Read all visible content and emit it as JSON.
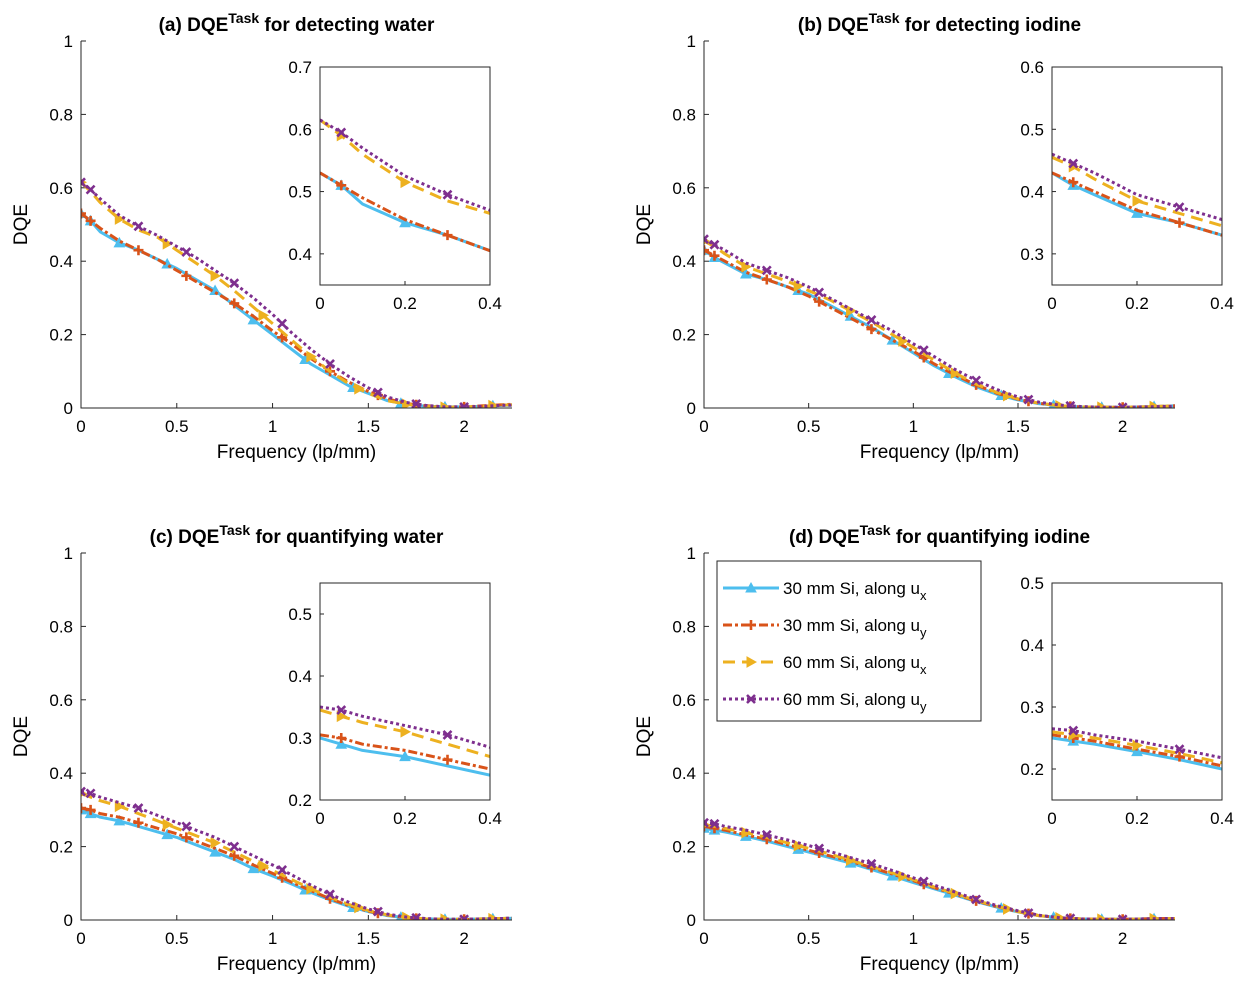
{
  "series_styles": [
    {
      "color": "#4DBEEE",
      "dash": "",
      "marker": "triangle-up"
    },
    {
      "color": "#D95319",
      "dash": "9,3,3,3",
      "marker": "plus"
    },
    {
      "color": "#EDB120",
      "dash": "12,7",
      "marker": "triangle-right"
    },
    {
      "color": "#7E2F8E",
      "dash": "3,3",
      "marker": "x"
    }
  ],
  "legend": {
    "entries": [
      {
        "text": "30 mm Si, along u",
        "sub": "x"
      },
      {
        "text": "30 mm Si, along u",
        "sub": "y"
      },
      {
        "text": "60 mm Si, along u",
        "sub": "x"
      },
      {
        "text": "60 mm Si, along u",
        "sub": "y"
      }
    ]
  },
  "chart_data": [
    {
      "type": "line",
      "title": {
        "pre": "(a) DQE",
        "sup": "Task",
        "post": " for detecting water"
      },
      "xlabel": "Frequency (lp/mm)",
      "ylabel": "DQE",
      "xlim": [
        0,
        2.25
      ],
      "ylim": [
        0,
        1
      ],
      "xticks": [
        {
          "v": 0,
          "label": "0"
        },
        {
          "v": 0.5,
          "label": "0.5"
        },
        {
          "v": 1,
          "label": "1"
        },
        {
          "v": 1.5,
          "label": "1.5"
        },
        {
          "v": 2,
          "label": "2"
        }
      ],
      "yticks": [
        {
          "v": 0,
          "label": "0"
        },
        {
          "v": 0.2,
          "label": "0.2"
        },
        {
          "v": 0.4,
          "label": "0.4"
        },
        {
          "v": 0.6,
          "label": "0.6"
        },
        {
          "v": 0.8,
          "label": "0.8"
        },
        {
          "v": 1,
          "label": "1"
        }
      ],
      "x": [
        0,
        0.05,
        0.1,
        0.2,
        0.3,
        0.4,
        0.5,
        0.6,
        0.7,
        0.8,
        0.9,
        1.0,
        1.1,
        1.2,
        1.3,
        1.4,
        1.5,
        1.6,
        1.7,
        1.8,
        1.9,
        2.0,
        2.1,
        2.2,
        2.25
      ],
      "series": [
        {
          "values": [
            0.53,
            0.51,
            0.48,
            0.45,
            0.43,
            0.405,
            0.38,
            0.35,
            0.32,
            0.28,
            0.24,
            0.2,
            0.16,
            0.12,
            0.09,
            0.06,
            0.04,
            0.02,
            0.01,
            0.005,
            0.003,
            0.003,
            0.005,
            0.007,
            0.008
          ]
        },
        {
          "values": [
            0.53,
            0.51,
            0.49,
            0.455,
            0.43,
            0.405,
            0.375,
            0.345,
            0.315,
            0.285,
            0.25,
            0.21,
            0.175,
            0.135,
            0.1,
            0.07,
            0.045,
            0.025,
            0.012,
            0.006,
            0.003,
            0.003,
            0.006,
            0.009,
            0.01
          ]
        },
        {
          "values": [
            0.615,
            0.59,
            0.56,
            0.515,
            0.485,
            0.465,
            0.43,
            0.395,
            0.36,
            0.32,
            0.275,
            0.23,
            0.185,
            0.14,
            0.1,
            0.065,
            0.04,
            0.02,
            0.01,
            0.004,
            0.002,
            0.003,
            0.005,
            0.008,
            0.009
          ]
        },
        {
          "values": [
            0.615,
            0.595,
            0.57,
            0.525,
            0.495,
            0.47,
            0.44,
            0.41,
            0.375,
            0.34,
            0.3,
            0.255,
            0.205,
            0.16,
            0.12,
            0.085,
            0.055,
            0.03,
            0.015,
            0.007,
            0.003,
            0.003,
            0.005,
            0.007,
            0.008
          ]
        }
      ],
      "inset": {
        "xlim": [
          0,
          0.4
        ],
        "ylim": [
          0.35,
          0.7
        ],
        "xticks": [
          {
            "v": 0,
            "label": "0"
          },
          {
            "v": 0.2,
            "label": "0.2"
          },
          {
            "v": 0.4,
            "label": "0.4"
          }
        ],
        "yticks": [
          {
            "v": 0.4,
            "label": "0.4"
          },
          {
            "v": 0.5,
            "label": "0.5"
          },
          {
            "v": 0.6,
            "label": "0.6"
          },
          {
            "v": 0.7,
            "label": "0.7"
          }
        ]
      }
    },
    {
      "type": "line",
      "title": {
        "pre": "(b) DQE",
        "sup": "Task",
        "post": " for detecting iodine"
      },
      "xlabel": "Frequency (lp/mm)",
      "ylabel": "DQE",
      "xlim": [
        0,
        2.25
      ],
      "ylim": [
        0,
        1
      ],
      "xticks": [
        {
          "v": 0,
          "label": "0"
        },
        {
          "v": 0.5,
          "label": "0.5"
        },
        {
          "v": 1,
          "label": "1"
        },
        {
          "v": 1.5,
          "label": "1.5"
        },
        {
          "v": 2,
          "label": "2"
        }
      ],
      "yticks": [
        {
          "v": 0,
          "label": "0"
        },
        {
          "v": 0.2,
          "label": "0.2"
        },
        {
          "v": 0.4,
          "label": "0.4"
        },
        {
          "v": 0.6,
          "label": "0.6"
        },
        {
          "v": 0.8,
          "label": "0.8"
        },
        {
          "v": 1,
          "label": "1"
        }
      ],
      "x": [
        0,
        0.05,
        0.1,
        0.2,
        0.3,
        0.4,
        0.5,
        0.6,
        0.7,
        0.8,
        0.9,
        1.0,
        1.1,
        1.2,
        1.3,
        1.4,
        1.5,
        1.6,
        1.7,
        1.8,
        1.9,
        2.0,
        2.1,
        2.2,
        2.25
      ],
      "series": [
        {
          "values": [
            0.43,
            0.41,
            0.395,
            0.365,
            0.35,
            0.33,
            0.31,
            0.28,
            0.25,
            0.22,
            0.185,
            0.15,
            0.115,
            0.085,
            0.058,
            0.037,
            0.022,
            0.012,
            0.006,
            0.003,
            0.002,
            0.002,
            0.003,
            0.005,
            0.006
          ]
        },
        {
          "values": [
            0.43,
            0.415,
            0.4,
            0.37,
            0.35,
            0.33,
            0.305,
            0.275,
            0.245,
            0.215,
            0.185,
            0.155,
            0.12,
            0.09,
            0.063,
            0.04,
            0.024,
            0.013,
            0.006,
            0.003,
            0.002,
            0.002,
            0.003,
            0.005,
            0.006
          ]
        },
        {
          "values": [
            0.455,
            0.44,
            0.42,
            0.385,
            0.365,
            0.345,
            0.32,
            0.295,
            0.265,
            0.235,
            0.2,
            0.165,
            0.13,
            0.095,
            0.065,
            0.042,
            0.025,
            0.013,
            0.006,
            0.003,
            0.002,
            0.002,
            0.003,
            0.005,
            0.006
          ]
        },
        {
          "values": [
            0.46,
            0.445,
            0.43,
            0.395,
            0.375,
            0.355,
            0.33,
            0.3,
            0.27,
            0.24,
            0.21,
            0.175,
            0.14,
            0.105,
            0.075,
            0.05,
            0.03,
            0.016,
            0.008,
            0.004,
            0.002,
            0.002,
            0.003,
            0.004,
            0.005
          ]
        }
      ],
      "inset": {
        "xlim": [
          0,
          0.4
        ],
        "ylim": [
          0.25,
          0.6
        ],
        "xticks": [
          {
            "v": 0,
            "label": "0"
          },
          {
            "v": 0.2,
            "label": "0.2"
          },
          {
            "v": 0.4,
            "label": "0.4"
          }
        ],
        "yticks": [
          {
            "v": 0.3,
            "label": "0.3"
          },
          {
            "v": 0.4,
            "label": "0.4"
          },
          {
            "v": 0.5,
            "label": "0.5"
          },
          {
            "v": 0.6,
            "label": "0.6"
          }
        ]
      }
    },
    {
      "type": "line",
      "title": {
        "pre": "(c) DQE",
        "sup": "Task",
        "post": " for quantifying water"
      },
      "xlabel": "Frequency (lp/mm)",
      "ylabel": "DQE",
      "xlim": [
        0,
        2.25
      ],
      "ylim": [
        0,
        1
      ],
      "xticks": [
        {
          "v": 0,
          "label": "0"
        },
        {
          "v": 0.5,
          "label": "0.5"
        },
        {
          "v": 1,
          "label": "1"
        },
        {
          "v": 1.5,
          "label": "1.5"
        },
        {
          "v": 2,
          "label": "2"
        }
      ],
      "yticks": [
        {
          "v": 0,
          "label": "0"
        },
        {
          "v": 0.2,
          "label": "0.2"
        },
        {
          "v": 0.4,
          "label": "0.4"
        },
        {
          "v": 0.6,
          "label": "0.6"
        },
        {
          "v": 0.8,
          "label": "0.8"
        },
        {
          "v": 1,
          "label": "1"
        }
      ],
      "x": [
        0,
        0.05,
        0.1,
        0.2,
        0.3,
        0.4,
        0.5,
        0.6,
        0.7,
        0.8,
        0.9,
        1.0,
        1.1,
        1.2,
        1.3,
        1.4,
        1.5,
        1.6,
        1.7,
        1.8,
        1.9,
        2.0,
        2.1,
        2.2,
        2.25
      ],
      "series": [
        {
          "values": [
            0.3,
            0.29,
            0.28,
            0.27,
            0.255,
            0.24,
            0.225,
            0.205,
            0.185,
            0.165,
            0.14,
            0.12,
            0.098,
            0.075,
            0.055,
            0.037,
            0.023,
            0.012,
            0.006,
            0.003,
            0.002,
            0.002,
            0.003,
            0.004,
            0.005
          ]
        },
        {
          "values": [
            0.305,
            0.3,
            0.29,
            0.28,
            0.265,
            0.25,
            0.235,
            0.215,
            0.195,
            0.175,
            0.15,
            0.127,
            0.103,
            0.08,
            0.058,
            0.039,
            0.024,
            0.013,
            0.006,
            0.003,
            0.002,
            0.002,
            0.003,
            0.004,
            0.005
          ]
        },
        {
          "values": [
            0.345,
            0.335,
            0.325,
            0.31,
            0.29,
            0.27,
            0.25,
            0.23,
            0.21,
            0.185,
            0.16,
            0.135,
            0.11,
            0.085,
            0.062,
            0.042,
            0.026,
            0.014,
            0.007,
            0.003,
            0.002,
            0.002,
            0.003,
            0.004,
            0.005
          ]
        },
        {
          "values": [
            0.35,
            0.345,
            0.335,
            0.32,
            0.305,
            0.285,
            0.265,
            0.245,
            0.225,
            0.2,
            0.175,
            0.15,
            0.123,
            0.095,
            0.07,
            0.048,
            0.03,
            0.016,
            0.008,
            0.004,
            0.002,
            0.002,
            0.003,
            0.004,
            0.005
          ]
        }
      ],
      "inset": {
        "xlim": [
          0,
          0.4
        ],
        "ylim": [
          0.2,
          0.55
        ],
        "xticks": [
          {
            "v": 0,
            "label": "0"
          },
          {
            "v": 0.2,
            "label": "0.2"
          },
          {
            "v": 0.4,
            "label": "0.4"
          }
        ],
        "yticks": [
          {
            "v": 0.2,
            "label": "0.2"
          },
          {
            "v": 0.3,
            "label": "0.3"
          },
          {
            "v": 0.4,
            "label": "0.4"
          },
          {
            "v": 0.5,
            "label": "0.5"
          }
        ]
      }
    },
    {
      "type": "line",
      "title": {
        "pre": "(d) DQE",
        "sup": "Task",
        "post": " for quantifying iodine"
      },
      "xlabel": "Frequency (lp/mm)",
      "ylabel": "DQE",
      "xlim": [
        0,
        2.25
      ],
      "ylim": [
        0,
        1
      ],
      "xticks": [
        {
          "v": 0,
          "label": "0"
        },
        {
          "v": 0.5,
          "label": "0.5"
        },
        {
          "v": 1,
          "label": "1"
        },
        {
          "v": 1.5,
          "label": "1.5"
        },
        {
          "v": 2,
          "label": "2"
        }
      ],
      "yticks": [
        {
          "v": 0,
          "label": "0"
        },
        {
          "v": 0.2,
          "label": "0.2"
        },
        {
          "v": 0.4,
          "label": "0.4"
        },
        {
          "v": 0.6,
          "label": "0.6"
        },
        {
          "v": 0.8,
          "label": "0.8"
        },
        {
          "v": 1,
          "label": "1"
        }
      ],
      "x": [
        0,
        0.05,
        0.1,
        0.2,
        0.3,
        0.4,
        0.5,
        0.6,
        0.7,
        0.8,
        0.9,
        1.0,
        1.1,
        1.2,
        1.3,
        1.4,
        1.5,
        1.6,
        1.7,
        1.8,
        1.9,
        2.0,
        2.1,
        2.2,
        2.25
      ],
      "series": [
        {
          "values": [
            0.25,
            0.245,
            0.24,
            0.228,
            0.215,
            0.2,
            0.185,
            0.17,
            0.155,
            0.138,
            0.12,
            0.102,
            0.085,
            0.068,
            0.05,
            0.035,
            0.022,
            0.012,
            0.006,
            0.003,
            0.002,
            0.002,
            0.003,
            0.004,
            0.004
          ]
        },
        {
          "values": [
            0.255,
            0.25,
            0.245,
            0.232,
            0.22,
            0.205,
            0.19,
            0.175,
            0.16,
            0.143,
            0.125,
            0.107,
            0.088,
            0.07,
            0.052,
            0.036,
            0.023,
            0.012,
            0.006,
            0.003,
            0.002,
            0.002,
            0.003,
            0.004,
            0.004
          ]
        },
        {
          "values": [
            0.26,
            0.255,
            0.25,
            0.238,
            0.225,
            0.21,
            0.195,
            0.18,
            0.163,
            0.146,
            0.128,
            0.11,
            0.09,
            0.072,
            0.053,
            0.037,
            0.023,
            0.012,
            0.006,
            0.003,
            0.002,
            0.002,
            0.003,
            0.004,
            0.004
          ]
        },
        {
          "values": [
            0.265,
            0.262,
            0.255,
            0.245,
            0.232,
            0.218,
            0.203,
            0.187,
            0.17,
            0.153,
            0.135,
            0.115,
            0.095,
            0.076,
            0.056,
            0.039,
            0.025,
            0.013,
            0.006,
            0.003,
            0.002,
            0.002,
            0.003,
            0.004,
            0.004
          ]
        }
      ],
      "inset": {
        "xlim": [
          0,
          0.4
        ],
        "ylim": [
          0.15,
          0.5
        ],
        "xticks": [
          {
            "v": 0,
            "label": "0"
          },
          {
            "v": 0.2,
            "label": "0.2"
          },
          {
            "v": 0.4,
            "label": "0.4"
          }
        ],
        "yticks": [
          {
            "v": 0.2,
            "label": "0.2"
          },
          {
            "v": 0.3,
            "label": "0.3"
          },
          {
            "v": 0.4,
            "label": "0.4"
          },
          {
            "v": 0.5,
            "label": "0.5"
          }
        ]
      }
    }
  ]
}
